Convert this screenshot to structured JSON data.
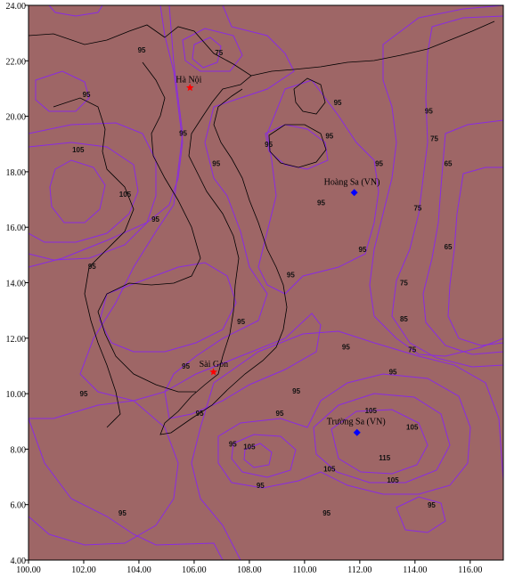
{
  "colors": {
    "band_low_brown": "#9e6666",
    "band_teal": "#5f9a9a",
    "band_gray": "#808080",
    "band_red_dark": "#c63a3a",
    "band_red": "#e23232",
    "band_red_bright": "#ff1212",
    "band_cyan": "#2ed6d6",
    "band_cyan_bright": "#00ffff",
    "isoline": "#8a2be2",
    "border": "#000000",
    "city_marker": "#ff0000",
    "island_marker": "#0000ff"
  },
  "axes": {
    "x_ticks": [
      "100.00",
      "102.00",
      "104.00",
      "106.00",
      "108.00",
      "110.00",
      "112.00",
      "114.00",
      "116.00"
    ],
    "y_ticks": [
      "24.00",
      "22.00",
      "20.00",
      "18.00",
      "16.00",
      "14.00",
      "12.00",
      "10.00",
      "8.00",
      "6.00",
      "4.00"
    ],
    "lon_range": [
      100,
      117.2
    ],
    "lat_range": [
      4,
      24
    ]
  },
  "places": [
    {
      "name": "Hà Nội",
      "lon": 105.85,
      "lat": 21.03,
      "marker": "star"
    },
    {
      "name": "Hoàng Sa (VN)",
      "lon": 111.8,
      "lat": 17.25,
      "marker": "diamond"
    },
    {
      "name": "Sài Gòn",
      "lon": 106.7,
      "lat": 10.78,
      "marker": "star"
    },
    {
      "name": "Trường Sa (VN)",
      "lon": 111.9,
      "lat": 8.6,
      "marker": "diamond"
    }
  ],
  "contour_labels": [
    {
      "text": "95",
      "lon": 104.1,
      "lat": 22.3
    },
    {
      "text": "75",
      "lon": 106.9,
      "lat": 22.2
    },
    {
      "text": "95",
      "lon": 102.1,
      "lat": 20.7
    },
    {
      "text": "95",
      "lon": 105.6,
      "lat": 19.3
    },
    {
      "text": "105",
      "lon": 101.8,
      "lat": 18.7
    },
    {
      "text": "95",
      "lon": 106.8,
      "lat": 18.2
    },
    {
      "text": "105",
      "lon": 103.5,
      "lat": 17.1
    },
    {
      "text": "95",
      "lon": 104.6,
      "lat": 16.2
    },
    {
      "text": "95",
      "lon": 102.3,
      "lat": 14.5
    },
    {
      "text": "95",
      "lon": 108.7,
      "lat": 18.9
    },
    {
      "text": "95",
      "lon": 110.9,
      "lat": 19.2
    },
    {
      "text": "95",
      "lon": 111.2,
      "lat": 20.4
    },
    {
      "text": "95",
      "lon": 112.7,
      "lat": 18.2
    },
    {
      "text": "95",
      "lon": 110.6,
      "lat": 16.8
    },
    {
      "text": "95",
      "lon": 112.1,
      "lat": 15.1
    },
    {
      "text": "95",
      "lon": 109.5,
      "lat": 14.2
    },
    {
      "text": "95",
      "lon": 114.5,
      "lat": 20.1
    },
    {
      "text": "75",
      "lon": 114.7,
      "lat": 19.1
    },
    {
      "text": "65",
      "lon": 115.2,
      "lat": 18.2
    },
    {
      "text": "75",
      "lon": 114.1,
      "lat": 16.6
    },
    {
      "text": "65",
      "lon": 115.2,
      "lat": 15.2
    },
    {
      "text": "75",
      "lon": 113.6,
      "lat": 13.9
    },
    {
      "text": "85",
      "lon": 113.6,
      "lat": 12.6
    },
    {
      "text": "75",
      "lon": 113.9,
      "lat": 11.5
    },
    {
      "text": "95",
      "lon": 107.7,
      "lat": 12.5
    },
    {
      "text": "95",
      "lon": 105.7,
      "lat": 10.9
    },
    {
      "text": "95",
      "lon": 102.0,
      "lat": 9.9
    },
    {
      "text": "95",
      "lon": 111.5,
      "lat": 11.6
    },
    {
      "text": "95",
      "lon": 113.2,
      "lat": 10.7
    },
    {
      "text": "95",
      "lon": 109.7,
      "lat": 10.0
    },
    {
      "text": "95",
      "lon": 106.2,
      "lat": 9.2
    },
    {
      "text": "95",
      "lon": 109.1,
      "lat": 9.2
    },
    {
      "text": "105",
      "lon": 112.4,
      "lat": 9.3
    },
    {
      "text": "105",
      "lon": 113.9,
      "lat": 8.7
    },
    {
      "text": "95",
      "lon": 107.4,
      "lat": 8.1
    },
    {
      "text": "105",
      "lon": 108.0,
      "lat": 8.0
    },
    {
      "text": "115",
      "lon": 112.9,
      "lat": 7.6
    },
    {
      "text": "105",
      "lon": 110.9,
      "lat": 7.2
    },
    {
      "text": "105",
      "lon": 113.2,
      "lat": 6.8
    },
    {
      "text": "95",
      "lon": 108.4,
      "lat": 6.6
    },
    {
      "text": "95",
      "lon": 110.8,
      "lat": 5.6
    },
    {
      "text": "95",
      "lon": 114.6,
      "lat": 5.9
    },
    {
      "text": "95",
      "lon": 103.4,
      "lat": 5.6
    }
  ]
}
